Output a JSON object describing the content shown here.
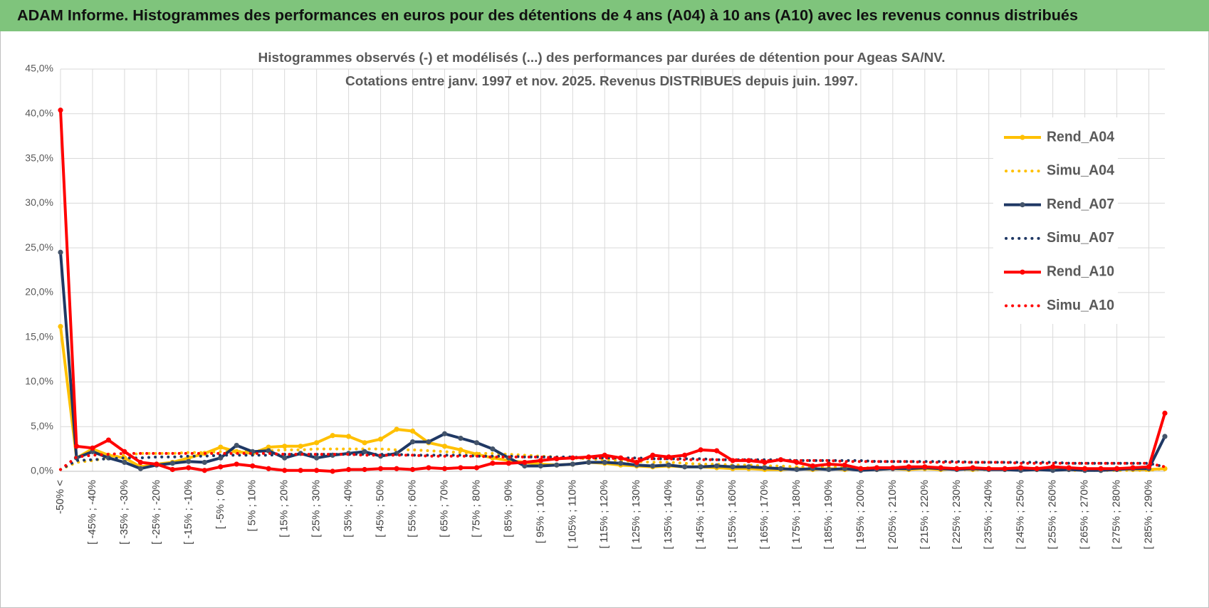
{
  "banner": "ADAM Informe. Histogrammes des performances en euros pour des détentions de 4 ans (A04) à 10 ans (A10) avec les revenus connus distribués",
  "chart_data": {
    "type": "line",
    "title": [
      "Histogrammes observés (-) et modélisés (...) des performances par durées de détention pour Ageas SA/NV.",
      "Cotations entre janv. 1997 et nov. 2025. Revenus DISTRIBUES depuis juin. 1997."
    ],
    "categories": [
      "-50% <",
      null,
      "[ -45% ; -40%",
      null,
      "[ -35% ; -30%",
      null,
      "[ -25% ; -20%",
      null,
      "[ -15% ; -10%",
      null,
      "[ -5% ; 0%",
      null,
      "[ 5% ; 10%",
      null,
      "[ 15% ; 20%",
      null,
      "[ 25% ; 30%",
      null,
      "[ 35% ; 40%",
      null,
      "[ 45% ; 50%",
      null,
      "[ 55% ; 60%",
      null,
      "[ 65% ; 70%",
      null,
      "[ 75% ; 80%",
      null,
      "[ 85% ; 90%",
      null,
      "[ 95% ; 100%",
      null,
      "[ 105% ; 110%",
      null,
      "[ 115% ; 120%",
      null,
      "[ 125% ; 130%",
      null,
      "[ 135% ; 140%",
      null,
      "[ 145% ; 150%",
      null,
      "[ 155% ; 160%",
      null,
      "[ 165% ; 170%",
      null,
      "[ 175% ; 180%",
      null,
      "[ 185% ; 190%",
      null,
      "[ 195% ; 200%",
      null,
      "[ 205% ; 210%",
      null,
      "[ 215% ; 220%",
      null,
      "[ 225% ; 230%",
      null,
      "[ 235% ; 240%",
      null,
      "[ 245% ; 250%",
      null,
      "[ 255% ; 260%",
      null,
      "[ 265% ; 270%",
      null,
      "[ 275% ; 280%",
      null,
      "[ 285% ; 290%",
      null
    ],
    "series": [
      {
        "name": "Rend_A04",
        "color": "#FFC000",
        "line_style": "solid",
        "markers": true,
        "values": [
          16.2,
          1.5,
          2.5,
          1.8,
          1.5,
          0.5,
          0.8,
          1.0,
          1.5,
          2.0,
          2.7,
          2.2,
          2.0,
          2.7,
          2.8,
          2.8,
          3.2,
          4.0,
          3.9,
          3.2,
          3.6,
          4.7,
          4.5,
          3.2,
          2.8,
          2.4,
          1.9,
          1.5,
          1.2,
          1.0,
          0.8,
          0.7,
          0.8,
          1.0,
          0.9,
          0.7,
          0.6,
          0.5,
          0.6,
          0.5,
          0.5,
          0.4,
          0.3,
          0.3,
          0.2,
          0.2,
          0.3,
          0.2,
          0.3,
          0.2,
          0.3,
          0.2,
          0.3,
          0.2,
          0.3,
          0.2,
          0.3,
          0.2,
          0.3,
          0.2,
          0.3,
          0.2,
          0.3,
          0.2,
          0.3,
          0.1,
          0.3,
          0.2,
          0.2,
          0.3
        ]
      },
      {
        "name": "Simu_A04",
        "color": "#FFC000",
        "line_style": "dotted",
        "markers": false,
        "values": [
          0.2,
          1.0,
          1.2,
          1.5,
          1.8,
          2.0,
          2.0,
          2.0,
          2.1,
          2.1,
          2.2,
          2.2,
          2.3,
          2.3,
          2.4,
          2.4,
          2.5,
          2.5,
          2.5,
          2.5,
          2.5,
          2.4,
          2.4,
          2.3,
          2.2,
          2.1,
          2.0,
          2.0,
          1.9,
          1.8,
          1.7,
          1.6,
          1.5,
          1.4,
          1.3,
          1.2,
          1.1,
          1.0,
          1.0,
          0.9,
          0.8,
          0.8,
          0.7,
          0.7,
          0.6,
          0.6,
          0.5,
          0.5,
          0.5,
          0.4,
          0.4,
          0.4,
          0.3,
          0.3,
          0.3,
          0.3,
          0.2,
          0.2,
          0.2,
          0.2,
          0.2,
          0.2,
          0.2,
          0.1,
          0.1,
          0.1,
          0.1,
          0.1,
          0.1,
          0.3
        ]
      },
      {
        "name": "Rend_A07",
        "color": "#1F3864",
        "line_style": "solid",
        "markers": true,
        "values": [
          24.5,
          1.5,
          2.2,
          1.5,
          1.0,
          0.3,
          0.7,
          0.9,
          1.1,
          1.0,
          1.5,
          2.9,
          2.2,
          2.3,
          1.5,
          2.0,
          1.5,
          1.8,
          2.0,
          2.2,
          1.7,
          2.0,
          3.3,
          3.3,
          4.2,
          3.7,
          3.2,
          2.5,
          1.5,
          0.6,
          0.6,
          0.7,
          0.8,
          1.0,
          1.0,
          0.9,
          0.7,
          0.6,
          0.7,
          0.5,
          0.5,
          0.6,
          0.5,
          0.5,
          0.4,
          0.3,
          0.2,
          0.3,
          0.2,
          0.3,
          0.1,
          0.2,
          0.3,
          0.3,
          0.4,
          0.3,
          0.2,
          0.3,
          0.2,
          0.2,
          0.1,
          0.2,
          0.1,
          0.2,
          0.1,
          0.1,
          0.2,
          0.3,
          0.3,
          3.9
        ]
      },
      {
        "name": "Simu_A07",
        "color": "#1F3864",
        "line_style": "dotted",
        "markers": false,
        "values": [
          0.2,
          1.2,
          1.3,
          1.4,
          1.5,
          1.5,
          1.6,
          1.6,
          1.7,
          1.7,
          1.8,
          1.8,
          1.8,
          1.8,
          1.9,
          1.9,
          1.9,
          1.9,
          1.9,
          1.9,
          1.9,
          1.9,
          1.8,
          1.8,
          1.8,
          1.8,
          1.7,
          1.7,
          1.7,
          1.6,
          1.6,
          1.6,
          1.6,
          1.5,
          1.5,
          1.5,
          1.5,
          1.4,
          1.4,
          1.4,
          1.4,
          1.3,
          1.3,
          1.3,
          1.3,
          1.3,
          1.2,
          1.2,
          1.2,
          1.2,
          1.2,
          1.1,
          1.1,
          1.1,
          1.1,
          1.1,
          1.1,
          1.0,
          1.0,
          1.0,
          1.0,
          1.0,
          1.0,
          0.9,
          0.9,
          0.9,
          0.9,
          0.9,
          0.9,
          0.5
        ]
      },
      {
        "name": "Rend_A10",
        "color": "#FF0000",
        "line_style": "solid",
        "markers": true,
        "values": [
          40.4,
          2.8,
          2.6,
          3.5,
          2.2,
          1.0,
          0.8,
          0.2,
          0.4,
          0.1,
          0.5,
          0.8,
          0.6,
          0.3,
          0.1,
          0.1,
          0.1,
          0.0,
          0.2,
          0.2,
          0.3,
          0.3,
          0.2,
          0.4,
          0.3,
          0.4,
          0.4,
          0.9,
          0.9,
          1.0,
          1.2,
          1.4,
          1.5,
          1.6,
          1.8,
          1.5,
          1.0,
          1.8,
          1.6,
          1.8,
          2.4,
          2.3,
          1.2,
          1.2,
          1.0,
          1.3,
          1.0,
          0.6,
          0.8,
          0.7,
          0.3,
          0.4,
          0.4,
          0.5,
          0.5,
          0.4,
          0.3,
          0.4,
          0.3,
          0.3,
          0.4,
          0.3,
          0.5,
          0.4,
          0.3,
          0.3,
          0.3,
          0.4,
          0.5,
          6.5
        ]
      },
      {
        "name": "Simu_A10",
        "color": "#FF0000",
        "line_style": "dotted",
        "markers": false,
        "values": [
          0.2,
          1.6,
          1.8,
          1.9,
          2.0,
          2.0,
          2.0,
          2.0,
          2.0,
          2.0,
          2.0,
          2.0,
          2.0,
          2.0,
          1.9,
          1.9,
          1.9,
          1.9,
          1.9,
          1.8,
          1.8,
          1.8,
          1.8,
          1.7,
          1.7,
          1.7,
          1.7,
          1.6,
          1.6,
          1.6,
          1.6,
          1.5,
          1.5,
          1.5,
          1.5,
          1.4,
          1.4,
          1.4,
          1.4,
          1.3,
          1.3,
          1.3,
          1.3,
          1.3,
          1.2,
          1.2,
          1.2,
          1.2,
          1.2,
          1.1,
          1.1,
          1.1,
          1.1,
          1.1,
          1.0,
          1.0,
          1.0,
          1.0,
          1.0,
          1.0,
          0.9,
          0.9,
          0.9,
          0.9,
          0.9,
          0.9,
          0.9,
          0.9,
          0.9,
          0.5
        ]
      }
    ],
    "ylim": [
      0,
      45
    ],
    "yticks": [
      {
        "value": 0,
        "label": "0,0%"
      },
      {
        "value": 5,
        "label": "5,0%"
      },
      {
        "value": 10,
        "label": "10,0%"
      },
      {
        "value": 15,
        "label": "15,0%"
      },
      {
        "value": 20,
        "label": "20,0%"
      },
      {
        "value": 25,
        "label": "25,0%"
      },
      {
        "value": 30,
        "label": "30,0%"
      },
      {
        "value": 35,
        "label": "35,0%"
      },
      {
        "value": 40,
        "label": "40,0%"
      },
      {
        "value": 45,
        "label": "45,0%"
      }
    ],
    "grid": true,
    "legend": "right"
  }
}
